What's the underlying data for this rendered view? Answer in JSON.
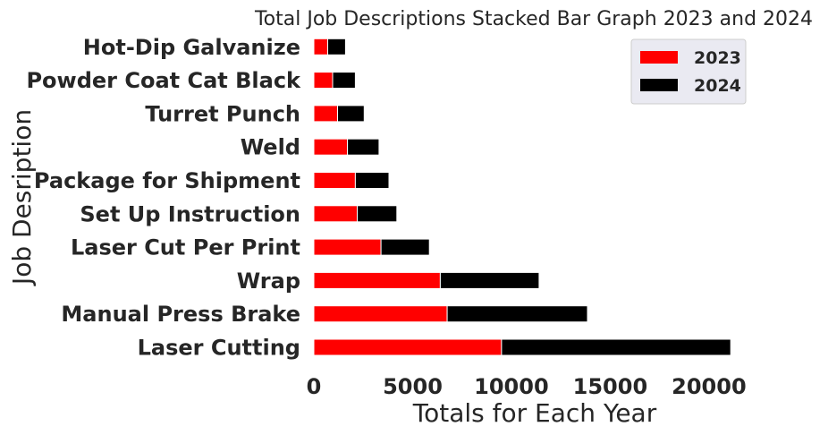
{
  "chart_data": {
    "type": "bar",
    "orientation": "horizontal",
    "stacked": true,
    "title": "Total Job Descriptions Stacked Bar Graph 2023 and 2024",
    "xlabel": "Totals for Each Year",
    "ylabel": "Job Desription",
    "xlim": [
      0,
      21500
    ],
    "xticks": [
      0,
      5000,
      10000,
      15000,
      20000
    ],
    "grid": false,
    "legend_position": "top-right",
    "categories": [
      "Laser Cutting",
      "Manual Press Brake",
      "Wrap",
      "Laser Cut Per Print",
      "Set Up Instruction",
      "Package for Shipment",
      "Weld",
      "Turret Punch",
      "Powder Coat Cat Black",
      "Hot-Dip Galvanize"
    ],
    "series": [
      {
        "name": "2023",
        "color": "#ff0000",
        "values": [
          9500,
          6750,
          6400,
          3400,
          2200,
          2100,
          1700,
          1200,
          950,
          700
        ]
      },
      {
        "name": "2024",
        "color": "#000000",
        "values": [
          11600,
          7100,
          5000,
          2450,
          2000,
          1700,
          1600,
          1350,
          1150,
          900
        ]
      }
    ]
  }
}
